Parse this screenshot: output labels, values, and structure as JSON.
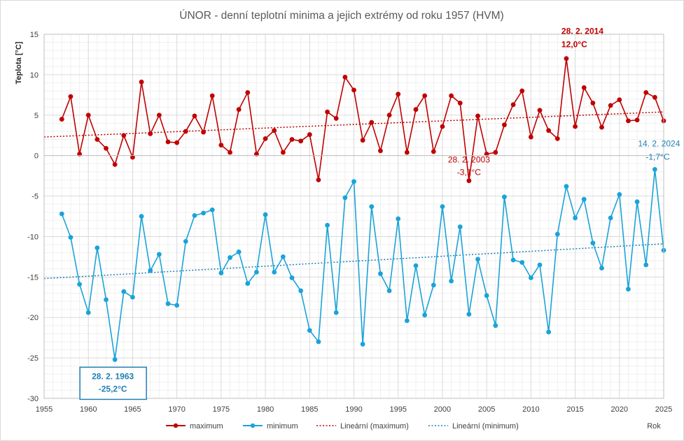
{
  "chart_data": {
    "type": "line",
    "title": "ÚNOR - denní teplotní minima a jejich extrémy od roku 1957 (HVM)",
    "ylabel": "Teplota [°C]",
    "xlabel": "Rok",
    "xlim": [
      1955,
      2025
    ],
    "ylim": [
      -30,
      15
    ],
    "x_ticks": [
      "1955",
      "1960",
      "1965",
      "1970",
      "1975",
      "1980",
      "1985",
      "1990",
      "1995",
      "2000",
      "2005",
      "2010",
      "2015",
      "2020",
      "2025"
    ],
    "y_ticks": [
      "15",
      "10",
      "5",
      "0",
      "-5",
      "-10",
      "-15",
      "-20",
      "-25",
      "-30"
    ],
    "grid": true,
    "legend_position": "bottom",
    "x": [
      1957,
      1958,
      1959,
      1960,
      1961,
      1962,
      1963,
      1964,
      1965,
      1966,
      1967,
      1968,
      1969,
      1970,
      1971,
      1972,
      1973,
      1974,
      1975,
      1976,
      1977,
      1978,
      1979,
      1980,
      1981,
      1982,
      1983,
      1984,
      1985,
      1986,
      1987,
      1988,
      1989,
      1990,
      1991,
      1992,
      1993,
      1994,
      1995,
      1996,
      1997,
      1998,
      1999,
      2000,
      2001,
      2002,
      2003,
      2004,
      2005,
      2006,
      2007,
      2008,
      2009,
      2010,
      2011,
      2012,
      2013,
      2014,
      2015,
      2016,
      2017,
      2018,
      2019,
      2020,
      2021,
      2022,
      2023,
      2024,
      2025
    ],
    "series": [
      {
        "name": "maximum",
        "color": "#c00000",
        "values": [
          4.5,
          7.3,
          0.2,
          5.0,
          2.0,
          0.9,
          -1.1,
          2.5,
          -0.2,
          9.1,
          2.7,
          5.0,
          1.7,
          1.6,
          3.0,
          4.9,
          2.9,
          7.4,
          1.3,
          0.4,
          5.7,
          7.8,
          0.2,
          2.1,
          3.1,
          0.4,
          2.0,
          1.8,
          2.6,
          -3.0,
          5.4,
          4.6,
          9.7,
          8.1,
          1.9,
          4.1,
          0.6,
          5.0,
          7.6,
          0.4,
          5.7,
          7.4,
          0.5,
          3.6,
          7.4,
          6.5,
          -3.1,
          4.9,
          0.2,
          0.4,
          3.8,
          6.3,
          8.0,
          2.3,
          5.6,
          3.1,
          2.1,
          12.0,
          3.6,
          8.4,
          6.5,
          3.5,
          6.2,
          6.9,
          4.3,
          4.4,
          7.8,
          7.2,
          4.3
        ]
      },
      {
        "name": "minimum",
        "color": "#1aa3d9",
        "values": [
          -7.2,
          -10.1,
          -15.9,
          -19.4,
          -11.4,
          -17.8,
          -25.2,
          -16.8,
          -17.5,
          -7.5,
          -14.2,
          -12.2,
          -18.3,
          -18.5,
          -10.6,
          -7.4,
          -7.1,
          -6.7,
          -14.5,
          -12.6,
          -11.9,
          -15.8,
          -14.4,
          -7.3,
          -14.4,
          -12.5,
          -15.1,
          -16.7,
          -21.6,
          -23.0,
          -8.6,
          -19.4,
          -5.2,
          -3.2,
          -23.3,
          -6.3,
          -14.6,
          -16.7,
          -7.8,
          -20.4,
          -13.6,
          -19.7,
          -16.0,
          -6.3,
          -15.5,
          -8.8,
          -19.6,
          -12.8,
          -17.3,
          -21.0,
          -5.1,
          -12.9,
          -13.2,
          -15.1,
          -13.5,
          -21.8,
          -9.7,
          -3.8,
          -7.7,
          -5.4,
          -10.8,
          -13.9,
          -7.7,
          -4.8,
          -16.5,
          -5.7,
          -13.5,
          -1.7,
          -11.7
        ]
      }
    ],
    "trendlines": [
      {
        "name": "Lineární (maximum)",
        "color": "#c00000",
        "x": [
          1955,
          2025
        ],
        "y": [
          2.3,
          5.4
        ]
      },
      {
        "name": "Lineární (minimum)",
        "color": "#1f7fb4",
        "x": [
          1955,
          2025
        ],
        "y": [
          -15.2,
          -10.9
        ]
      }
    ],
    "annotations": [
      {
        "id": "max2014",
        "x": 2014,
        "y": 12.0,
        "date": "28. 2. 2014",
        "value": "12,0°C",
        "color": "#c00000",
        "bold": true
      },
      {
        "id": "max2003",
        "x": 2003,
        "y": -3.1,
        "date": "28. 2. 2003",
        "value": "-3,1°C",
        "color": "#c00000",
        "bold": false
      },
      {
        "id": "min2024",
        "x": 2024,
        "y": -1.7,
        "date": "14. 2. 2024",
        "value": "-1,7°C",
        "color": "#1f7fb4",
        "bold": false
      },
      {
        "id": "min1963",
        "x": 1963,
        "y": -25.2,
        "date": "28. 2. 1963",
        "value": "-25,2°C",
        "color": "#1f7fb4",
        "bold": true,
        "boxed": true
      }
    ],
    "legend": [
      "maximum",
      "minimum",
      "Lineární (maximum)",
      "Lineární (minimum)"
    ]
  }
}
